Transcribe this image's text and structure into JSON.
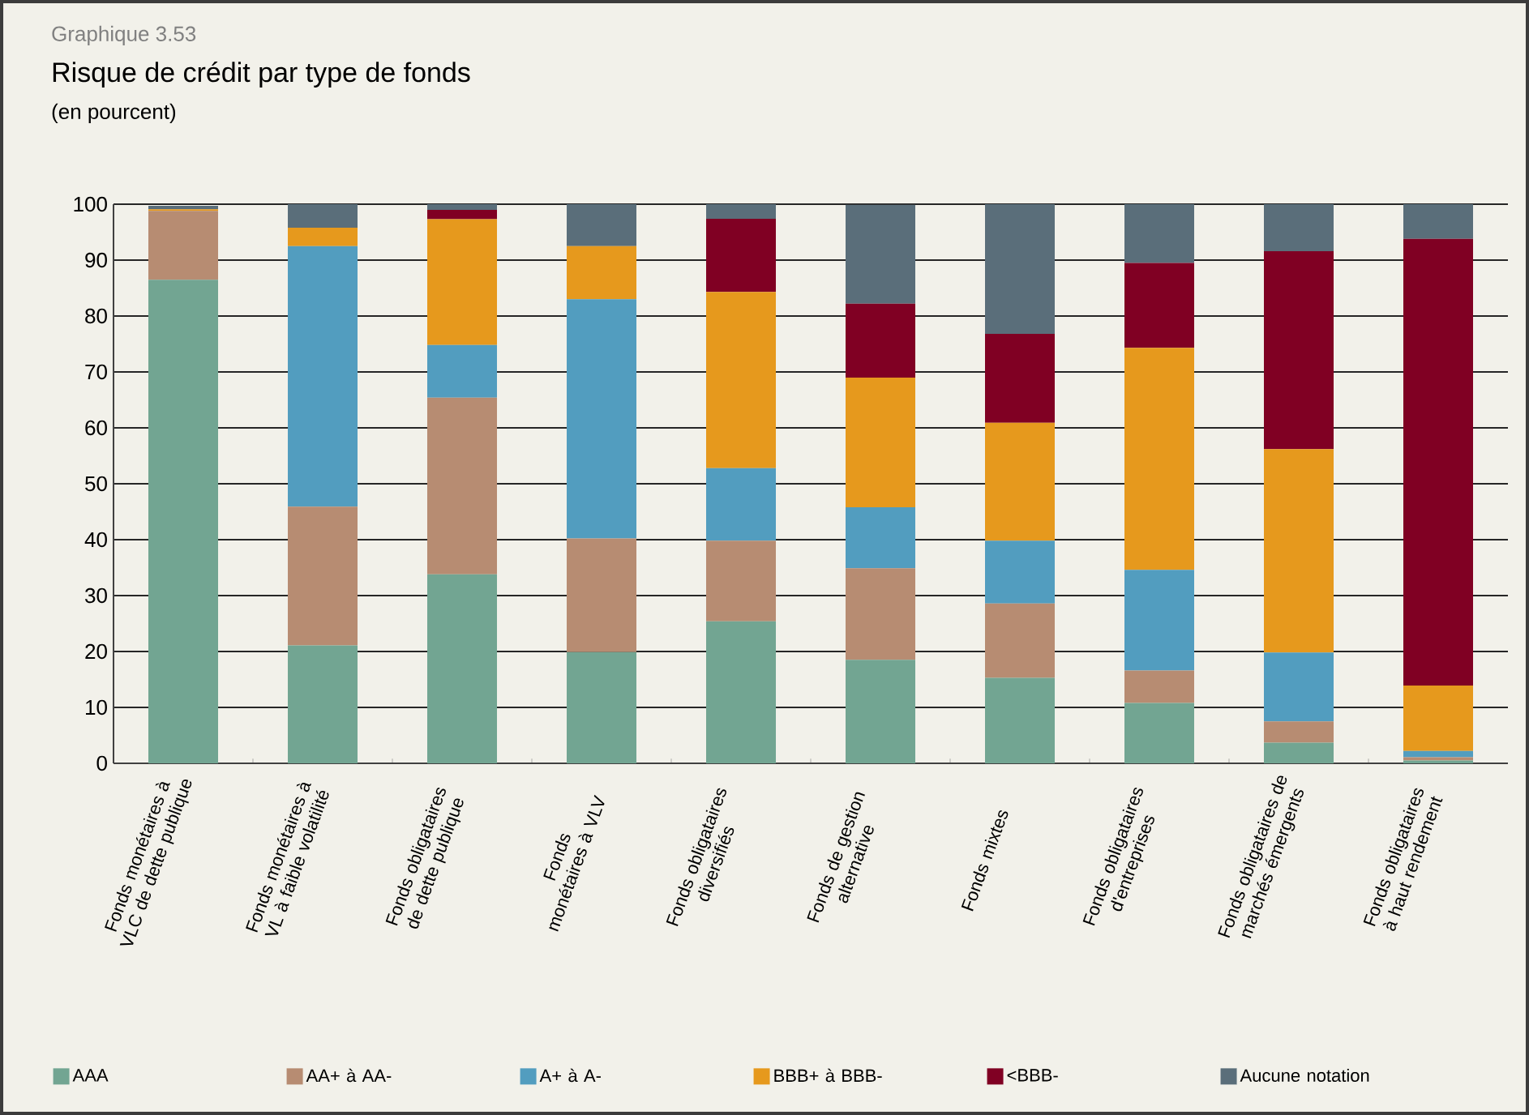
{
  "chart_data": {
    "type": "bar",
    "stacked": true,
    "annotations": [
      "Graphique 3.53"
    ],
    "title": "Risque de crédit par type de fonds",
    "subtitle": "(en pourcent)",
    "categories": [
      "Fonds monétaires à VLC de dette publique",
      "Fonds monétaires à VL à faible volatilité",
      "Fonds obligataires de dette publique",
      "Fonds monétaires à VLV",
      "Fonds obligataires diversifiés",
      "Fonds de gestion alternative",
      "Fonds mixtes",
      "Fonds obligataires d'entreprises",
      "Fonds obligataires de marchés émergents",
      "Fonds obligataires à haut rendement"
    ],
    "series": [
      {
        "name": "AAA",
        "color": "#72a592",
        "values": [
          86.5,
          21.1,
          33.8,
          19.9,
          25.4,
          18.5,
          15.3,
          10.8,
          3.7,
          0.5
        ]
      },
      {
        "name": "AA+ à AA-",
        "color": "#b78c72",
        "values": [
          12.3,
          24.8,
          31.6,
          20.3,
          14.4,
          16.4,
          13.3,
          5.8,
          3.8,
          0.6
        ]
      },
      {
        "name": "A+ à A-",
        "color": "#529dbf",
        "values": [
          0,
          46.6,
          9.4,
          42.8,
          13.0,
          10.9,
          11.2,
          18.0,
          12.3,
          1.1
        ]
      },
      {
        "name": "BBB+ à BBB-",
        "color": "#e6991d",
        "values": [
          0.3,
          3.3,
          22.5,
          9.5,
          31.5,
          23.2,
          21.1,
          39.7,
          36.4,
          11.7
        ]
      },
      {
        "name": "<BBB-",
        "color": "#800023",
        "values": [
          0,
          0,
          1.7,
          0,
          13.1,
          13.2,
          15.9,
          15.2,
          35.4,
          79.9
        ]
      },
      {
        "name": "Aucune notation",
        "color": "#5a6e7a",
        "values": [
          0.6,
          4.2,
          1.0,
          7.5,
          2.6,
          17.7,
          23.2,
          10.5,
          8.4,
          6.2
        ]
      }
    ],
    "ylim": [
      0,
      100
    ],
    "yticks": [
      0,
      10,
      20,
      30,
      40,
      50,
      60,
      70,
      80,
      90,
      100
    ],
    "grid": "y",
    "legend": "bottom"
  }
}
